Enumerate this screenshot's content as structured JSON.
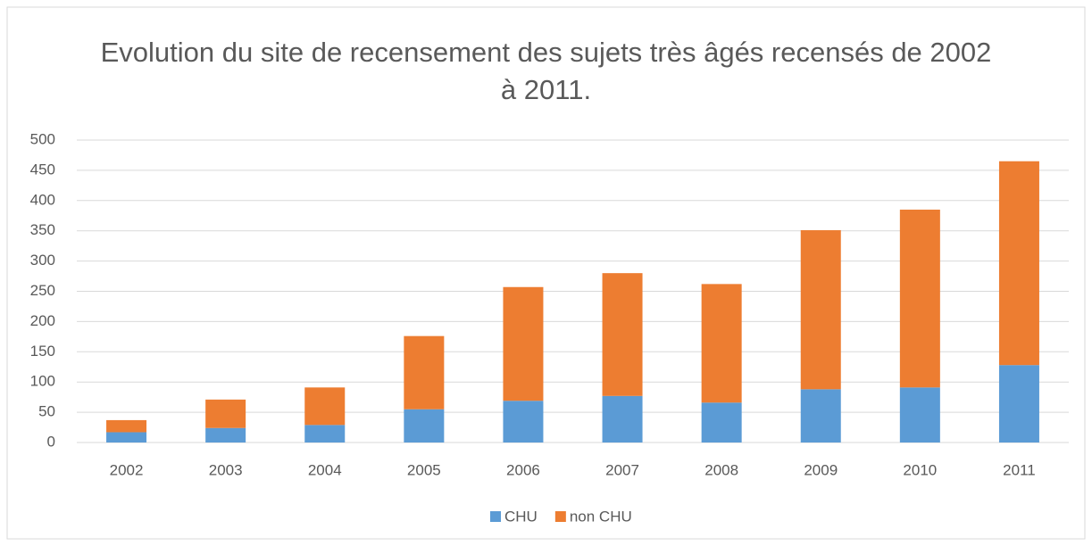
{
  "chart_data": {
    "type": "stacked_bar",
    "title": "Evolution du site de recensement des sujets très âgés recensés de 2002 à 2011.",
    "categories": [
      "2002",
      "2003",
      "2004",
      "2005",
      "2006",
      "2007",
      "2008",
      "2009",
      "2010",
      "2011"
    ],
    "series": [
      {
        "name": "CHU",
        "color": "#5b9bd5",
        "values": [
          17,
          24,
          29,
          55,
          69,
          77,
          66,
          88,
          91,
          128
        ]
      },
      {
        "name": "non CHU",
        "color": "#ed7d31",
        "values": [
          20,
          47,
          62,
          121,
          188,
          203,
          196,
          263,
          294,
          337
        ]
      }
    ],
    "ylim": [
      0,
      500
    ],
    "yticks": [
      0,
      50,
      100,
      150,
      200,
      250,
      300,
      350,
      400,
      450,
      500
    ],
    "grid": true,
    "legend": "bottom"
  }
}
